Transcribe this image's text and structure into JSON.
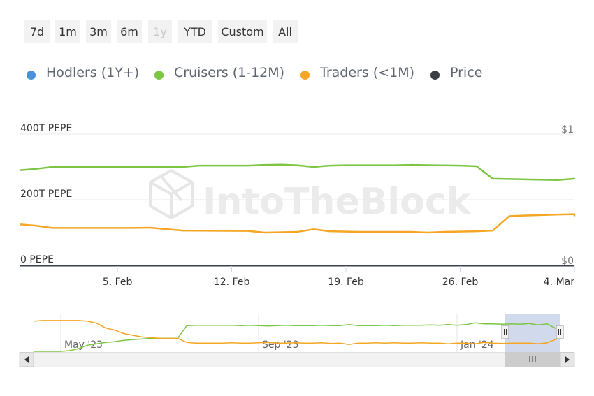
{
  "range_selector": {
    "buttons": [
      {
        "label": "7d",
        "disabled": false
      },
      {
        "label": "1m",
        "disabled": false
      },
      {
        "label": "3m",
        "disabled": false
      },
      {
        "label": "6m",
        "disabled": false
      },
      {
        "label": "1y",
        "disabled": true
      },
      {
        "label": "YTD",
        "disabled": false
      },
      {
        "label": "Custom",
        "disabled": false
      },
      {
        "label": "All",
        "disabled": false
      }
    ]
  },
  "legend": [
    {
      "label": "Hodlers (1Y+)",
      "color": "#4a90e2"
    },
    {
      "label": "Cruisers (1-12M)",
      "color": "#7cc644"
    },
    {
      "label": "Traders (<1M)",
      "color": "#f5a623"
    },
    {
      "label": "Price",
      "color": "#3a3f44"
    }
  ],
  "watermark": "IntoTheBlock",
  "chart_data": {
    "type": "line",
    "x_ticks": [
      "5. Feb",
      "12. Feb",
      "19. Feb",
      "26. Feb",
      "4. Mar"
    ],
    "y_left_ticks": [
      "0 PEPE",
      "200T PEPE",
      "400T PEPE"
    ],
    "y_right_ticks": [
      "$0",
      "$1"
    ],
    "ylim": [
      0,
      400
    ],
    "y_unit": "T PEPE",
    "x_start": "2024-01-30",
    "x_end": "2024-03-04",
    "grid": true,
    "series": [
      {
        "name": "Cruisers (1-12M)",
        "color": "#7cc644",
        "points": [
          [
            "2024-01-30",
            290
          ],
          [
            "2024-01-31",
            294
          ],
          [
            "2024-02-01",
            300
          ],
          [
            "2024-02-03",
            300
          ],
          [
            "2024-02-06",
            300
          ],
          [
            "2024-02-09",
            300
          ],
          [
            "2024-02-10",
            304
          ],
          [
            "2024-02-13",
            304
          ],
          [
            "2024-02-14",
            306
          ],
          [
            "2024-02-15",
            307
          ],
          [
            "2024-02-16",
            305
          ],
          [
            "2024-02-17",
            300
          ],
          [
            "2024-02-18",
            304
          ],
          [
            "2024-02-19",
            305
          ],
          [
            "2024-02-22",
            305
          ],
          [
            "2024-02-23",
            306
          ],
          [
            "2024-02-26",
            304
          ],
          [
            "2024-02-27",
            302
          ],
          [
            "2024-02-28",
            264
          ],
          [
            "2024-03-01",
            262
          ],
          [
            "2024-03-03",
            260
          ],
          [
            "2024-03-04",
            264
          ],
          [
            "2024-03-05",
            262
          ],
          [
            "2024-03-06",
            262
          ]
        ]
      },
      {
        "name": "Traders (<1M)",
        "color": "#f5a623",
        "points": [
          [
            "2024-01-30",
            125
          ],
          [
            "2024-01-31",
            121
          ],
          [
            "2024-02-01",
            114
          ],
          [
            "2024-02-03",
            114
          ],
          [
            "2024-02-06",
            114
          ],
          [
            "2024-02-07",
            115
          ],
          [
            "2024-02-09",
            106
          ],
          [
            "2024-02-13",
            105
          ],
          [
            "2024-02-14",
            100
          ],
          [
            "2024-02-16",
            102
          ],
          [
            "2024-02-17",
            110
          ],
          [
            "2024-02-18",
            104
          ],
          [
            "2024-02-20",
            102
          ],
          [
            "2024-02-23",
            102
          ],
          [
            "2024-02-24",
            100
          ],
          [
            "2024-02-25",
            102
          ],
          [
            "2024-02-27",
            104
          ],
          [
            "2024-02-28",
            106
          ],
          [
            "2024-02-29",
            150
          ],
          [
            "2024-03-01",
            152
          ],
          [
            "2024-03-03",
            155
          ],
          [
            "2024-03-04",
            156
          ],
          [
            "2024-03-05",
            152
          ],
          [
            "2024-03-06",
            153
          ]
        ]
      }
    ]
  },
  "navigator": {
    "x_ticks": [
      "May '23",
      "Sep '23",
      "Jan '24"
    ],
    "scrollbar_thumb_icon": "grip-lines-icon",
    "left_arrow_icon": "arrow-left-icon",
    "right_arrow_icon": "arrow-right-icon",
    "series": [
      {
        "name": "Cruisers (1-12M)",
        "color": "#7cc644",
        "values": [
          0,
          0,
          0,
          0,
          0.02,
          0.08,
          0.18,
          0.22,
          0.26,
          0.28,
          0.32,
          0.34,
          0.36,
          0.38,
          0.38,
          0.38,
          0.38,
          0.75,
          0.76,
          0.76,
          0.76,
          0.76,
          0.76,
          0.75,
          0.76,
          0.75,
          0.74,
          0.75,
          0.76,
          0.75,
          0.75,
          0.75,
          0.76,
          0.75,
          0.75,
          0.78,
          0.75,
          0.75,
          0.75,
          0.76,
          0.75,
          0.76,
          0.76,
          0.76,
          0.77,
          0.76,
          0.78,
          0.76,
          0.78,
          0.83,
          0.8,
          0.8,
          0.79,
          0.8,
          0.79,
          0.81,
          0.77,
          0.8,
          0.66
        ]
      },
      {
        "name": "Traders (<1M)",
        "color": "#f5a623",
        "values": [
          0.88,
          0.9,
          0.9,
          0.9,
          0.9,
          0.9,
          0.88,
          0.82,
          0.68,
          0.62,
          0.52,
          0.47,
          0.42,
          0.4,
          0.38,
          0.38,
          0.38,
          0.26,
          0.24,
          0.24,
          0.24,
          0.24,
          0.25,
          0.24,
          0.24,
          0.25,
          0.26,
          0.24,
          0.24,
          0.25,
          0.24,
          0.24,
          0.25,
          0.23,
          0.24,
          0.2,
          0.24,
          0.24,
          0.25,
          0.24,
          0.25,
          0.24,
          0.24,
          0.25,
          0.24,
          0.24,
          0.22,
          0.24,
          0.24,
          0.22,
          0.26,
          0.24,
          0.23,
          0.24,
          0.24,
          0.24,
          0.22,
          0.25,
          0.36
        ]
      }
    ]
  }
}
